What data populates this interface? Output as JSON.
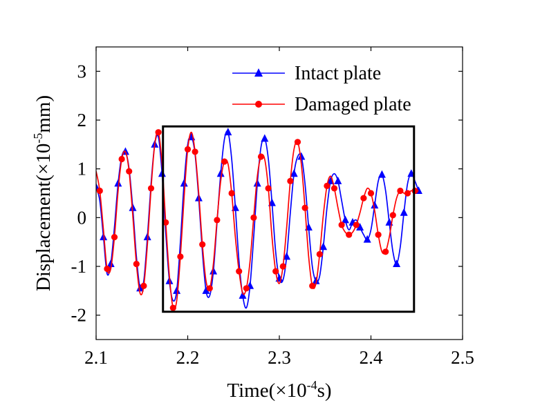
{
  "chart_data": {
    "type": "line",
    "xlabel": "Time(×10",
    "xlabel_exp": "-4",
    "xlabel_unit": "s)",
    "ylabel": "Displacement(×10",
    "ylabel_exp": "-5",
    "ylabel_unit": "mm)",
    "xlim": [
      2.1,
      2.5
    ],
    "ylim": [
      -2.5,
      3.5
    ],
    "xticks": [
      2.1,
      2.2,
      2.3,
      2.4,
      2.5
    ],
    "xtick_labels": [
      "2.1",
      "2.2",
      "2.3",
      "2.4",
      "2.5"
    ],
    "yticks": [
      -2,
      -1,
      0,
      1,
      2,
      3
    ],
    "ytick_labels": [
      "-2",
      "-1",
      "0",
      "1",
      "2",
      "3"
    ],
    "grid": false,
    "legend_position": "top-right",
    "highlight_box": {
      "x": [
        2.173,
        2.447
      ],
      "y": [
        -1.93,
        1.87
      ]
    },
    "series": [
      {
        "name": "Intact plate",
        "color": "#0000ff",
        "marker": "triangle",
        "points": [
          [
            2.1,
            0.62
          ],
          [
            2.104,
            0.35
          ],
          [
            2.108,
            -0.4
          ],
          [
            2.112,
            -1.15
          ],
          [
            2.116,
            -0.95
          ],
          [
            2.12,
            -0.2
          ],
          [
            2.124,
            0.7
          ],
          [
            2.128,
            1.25
          ],
          [
            2.132,
            1.35
          ],
          [
            2.136,
            1.0
          ],
          [
            2.14,
            0.2
          ],
          [
            2.144,
            -0.8
          ],
          [
            2.148,
            -1.45
          ],
          [
            2.152,
            -1.3
          ],
          [
            2.156,
            -0.4
          ],
          [
            2.16,
            0.7
          ],
          [
            2.164,
            1.5
          ],
          [
            2.168,
            1.65
          ],
          [
            2.172,
            0.9
          ],
          [
            2.176,
            -0.3
          ],
          [
            2.18,
            -1.3
          ],
          [
            2.184,
            -1.7
          ],
          [
            2.188,
            -1.5
          ],
          [
            2.192,
            -0.5
          ],
          [
            2.196,
            0.7
          ],
          [
            2.2,
            1.5
          ],
          [
            2.204,
            1.65
          ],
          [
            2.208,
            1.3
          ],
          [
            2.212,
            0.4
          ],
          [
            2.216,
            -0.7
          ],
          [
            2.22,
            -1.5
          ],
          [
            2.224,
            -1.6
          ],
          [
            2.228,
            -1.1
          ],
          [
            2.232,
            -0.1
          ],
          [
            2.236,
            0.9
          ],
          [
            2.24,
            1.6
          ],
          [
            2.244,
            1.75
          ],
          [
            2.248,
            1.2
          ],
          [
            2.252,
            0.2
          ],
          [
            2.256,
            -0.9
          ],
          [
            2.26,
            -1.6
          ],
          [
            2.264,
            -1.85
          ],
          [
            2.268,
            -1.4
          ],
          [
            2.272,
            -0.4
          ],
          [
            2.276,
            0.7
          ],
          [
            2.28,
            1.45
          ],
          [
            2.284,
            1.62
          ],
          [
            2.288,
            1.2
          ],
          [
            2.292,
            0.3
          ],
          [
            2.296,
            -0.7
          ],
          [
            2.3,
            -1.25
          ],
          [
            2.304,
            -1.28
          ],
          [
            2.308,
            -0.8
          ],
          [
            2.312,
            0.1
          ],
          [
            2.316,
            0.9
          ],
          [
            2.32,
            1.25
          ],
          [
            2.324,
            1.25
          ],
          [
            2.328,
            0.7
          ],
          [
            2.332,
            -0.2
          ],
          [
            2.336,
            -1.0
          ],
          [
            2.34,
            -1.3
          ],
          [
            2.344,
            -1.2
          ],
          [
            2.348,
            -0.6
          ],
          [
            2.352,
            0.2
          ],
          [
            2.356,
            0.75
          ],
          [
            2.36,
            0.9
          ],
          [
            2.364,
            0.75
          ],
          [
            2.368,
            0.35
          ],
          [
            2.372,
            -0.05
          ],
          [
            2.376,
            -0.25
          ],
          [
            2.38,
            -0.1
          ],
          [
            2.384,
            -0.05
          ],
          [
            2.388,
            -0.2
          ],
          [
            2.392,
            -0.35
          ],
          [
            2.396,
            -0.45
          ],
          [
            2.4,
            -0.25
          ],
          [
            2.404,
            0.25
          ],
          [
            2.408,
            0.75
          ],
          [
            2.412,
            0.88
          ],
          [
            2.416,
            0.55
          ],
          [
            2.42,
            -0.1
          ],
          [
            2.424,
            -0.7
          ],
          [
            2.428,
            -0.95
          ],
          [
            2.432,
            -0.6
          ],
          [
            2.436,
            0.1
          ],
          [
            2.44,
            0.7
          ],
          [
            2.444,
            0.9
          ],
          [
            2.448,
            0.75
          ],
          [
            2.452,
            0.55
          ]
        ]
      },
      {
        "name": "Damaged plate",
        "color": "#ff0000",
        "marker": "circle",
        "points": [
          [
            2.1,
            0.95
          ],
          [
            2.104,
            0.55
          ],
          [
            2.108,
            -0.25
          ],
          [
            2.112,
            -1.05
          ],
          [
            2.116,
            -1.05
          ],
          [
            2.12,
            -0.4
          ],
          [
            2.124,
            0.55
          ],
          [
            2.128,
            1.2
          ],
          [
            2.132,
            1.35
          ],
          [
            2.136,
            0.95
          ],
          [
            2.14,
            0.05
          ],
          [
            2.144,
            -0.95
          ],
          [
            2.148,
            -1.55
          ],
          [
            2.152,
            -1.4
          ],
          [
            2.156,
            -0.55
          ],
          [
            2.16,
            0.6
          ],
          [
            2.164,
            1.5
          ],
          [
            2.168,
            1.75
          ],
          [
            2.172,
            1.1
          ],
          [
            2.176,
            -0.1
          ],
          [
            2.18,
            -1.2
          ],
          [
            2.184,
            -1.85
          ],
          [
            2.188,
            -1.7
          ],
          [
            2.192,
            -0.8
          ],
          [
            2.196,
            0.4
          ],
          [
            2.2,
            1.4
          ],
          [
            2.204,
            1.75
          ],
          [
            2.208,
            1.35
          ],
          [
            2.212,
            0.5
          ],
          [
            2.216,
            -0.55
          ],
          [
            2.22,
            -1.3
          ],
          [
            2.224,
            -1.45
          ],
          [
            2.228,
            -0.95
          ],
          [
            2.232,
            -0.05
          ],
          [
            2.236,
            0.75
          ],
          [
            2.24,
            1.15
          ],
          [
            2.244,
            1.1
          ],
          [
            2.248,
            0.5
          ],
          [
            2.252,
            -0.4
          ],
          [
            2.256,
            -1.1
          ],
          [
            2.26,
            -1.55
          ],
          [
            2.264,
            -1.45
          ],
          [
            2.268,
            -0.9
          ],
          [
            2.272,
            0.0
          ],
          [
            2.276,
            0.85
          ],
          [
            2.28,
            1.25
          ],
          [
            2.284,
            1.2
          ],
          [
            2.288,
            0.6
          ],
          [
            2.292,
            -0.4
          ],
          [
            2.296,
            -1.1
          ],
          [
            2.3,
            -1.35
          ],
          [
            2.304,
            -1.0
          ],
          [
            2.308,
            -0.2
          ],
          [
            2.312,
            0.75
          ],
          [
            2.316,
            1.4
          ],
          [
            2.32,
            1.55
          ],
          [
            2.324,
            1.1
          ],
          [
            2.328,
            0.2
          ],
          [
            2.332,
            -0.8
          ],
          [
            2.336,
            -1.4
          ],
          [
            2.34,
            -1.35
          ],
          [
            2.344,
            -0.75
          ],
          [
            2.348,
            0.05
          ],
          [
            2.352,
            0.65
          ],
          [
            2.356,
            0.85
          ],
          [
            2.36,
            0.6
          ],
          [
            2.364,
            0.2
          ],
          [
            2.368,
            -0.15
          ],
          [
            2.372,
            -0.3
          ],
          [
            2.376,
            -0.35
          ],
          [
            2.38,
            -0.3
          ],
          [
            2.384,
            -0.15
          ],
          [
            2.388,
            0.1
          ],
          [
            2.392,
            0.4
          ],
          [
            2.396,
            0.6
          ],
          [
            2.4,
            0.5
          ],
          [
            2.404,
            0.15
          ],
          [
            2.408,
            -0.35
          ],
          [
            2.412,
            -0.7
          ],
          [
            2.416,
            -0.7
          ],
          [
            2.42,
            -0.4
          ],
          [
            2.424,
            0.05
          ],
          [
            2.428,
            0.4
          ],
          [
            2.432,
            0.55
          ],
          [
            2.436,
            0.5
          ],
          [
            2.44,
            0.5
          ],
          [
            2.444,
            0.55
          ],
          [
            2.448,
            0.55
          ],
          [
            2.452,
            0.55
          ]
        ]
      }
    ]
  }
}
